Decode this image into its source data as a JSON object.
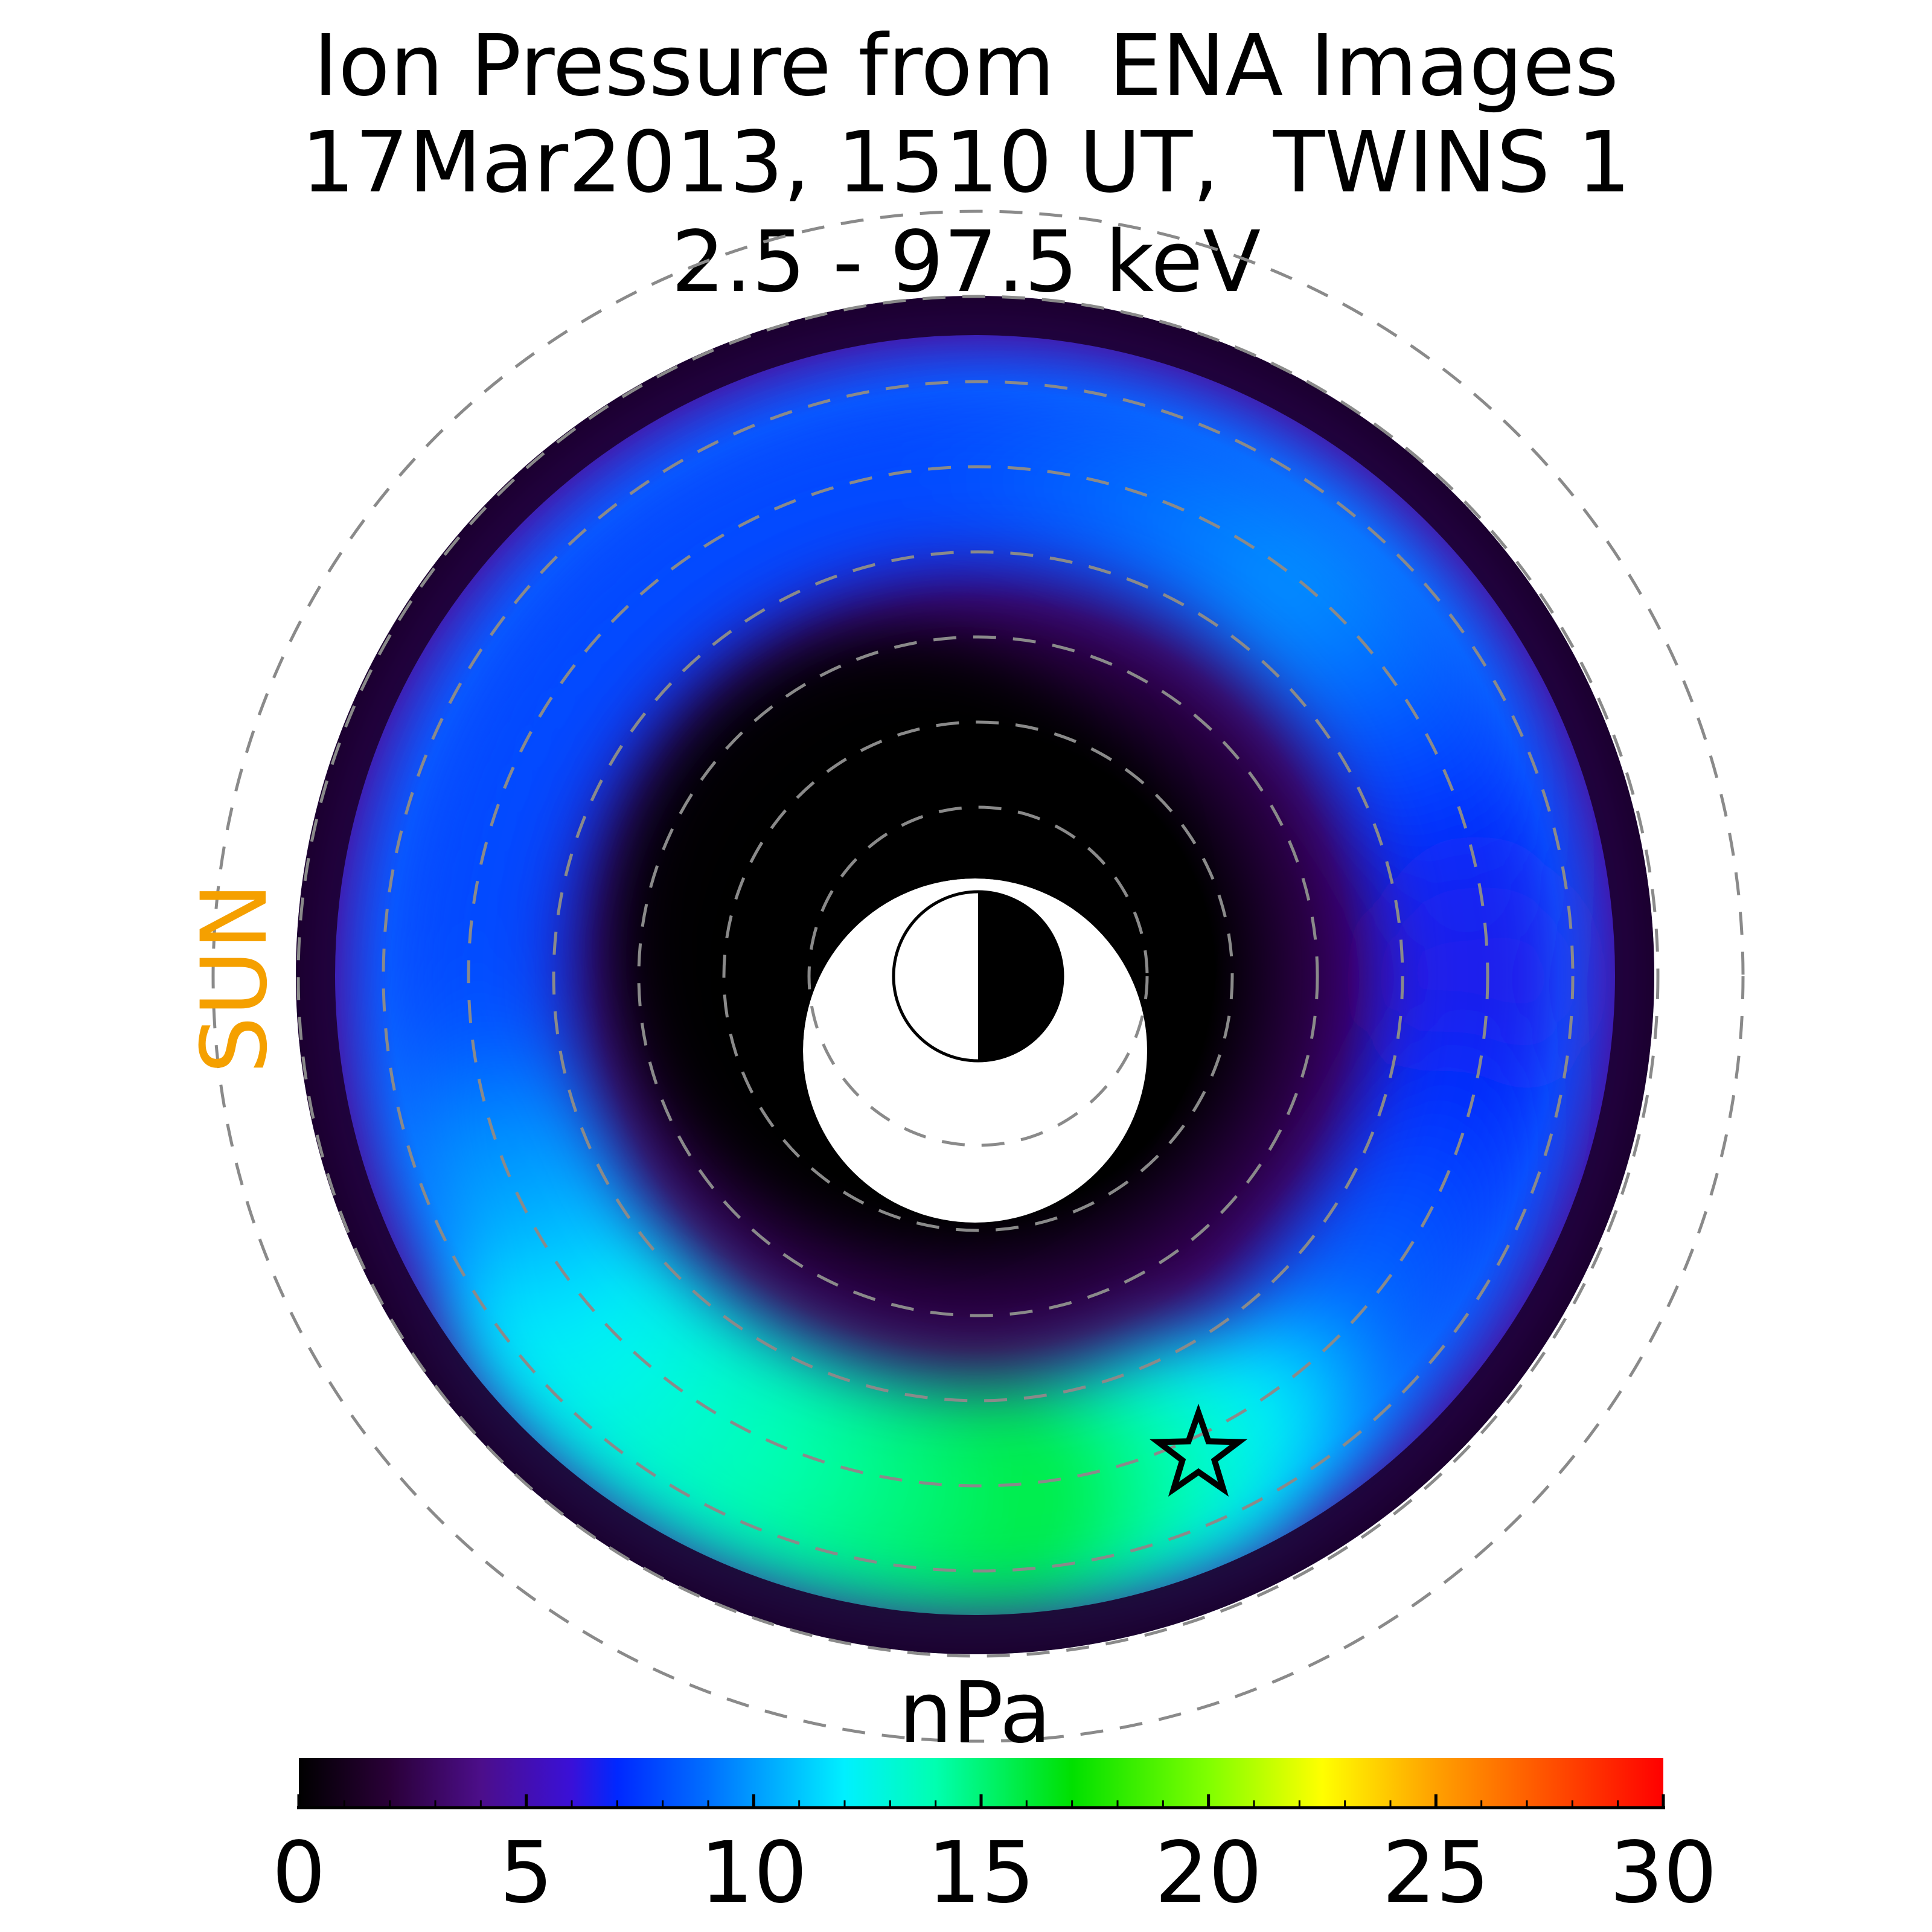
{
  "chart_data": {
    "type": "heatmap",
    "title_lines": [
      "Ion Pressure from  ENA Images",
      "17Mar2013, 1510 UT,  TWINS 1",
      "2.5 - 97.5 keV"
    ],
    "side_label": "SUN",
    "side_label_color": "#f5a000",
    "colorbar": {
      "label": "nPa",
      "range": [
        0,
        30
      ],
      "ticks": [
        0,
        5,
        10,
        15,
        20,
        25,
        30
      ],
      "tick_labels": [
        "0",
        "5",
        "10",
        "15",
        "20",
        "25",
        "30"
      ],
      "minor_tick_step": 1,
      "colormap": [
        {
          "value": 0,
          "color": "#000000"
        },
        {
          "value": 2,
          "color": "#2a0038"
        },
        {
          "value": 4,
          "color": "#4c0e8a"
        },
        {
          "value": 6,
          "color": "#3a10d8"
        },
        {
          "value": 7,
          "color": "#0028ff"
        },
        {
          "value": 9,
          "color": "#0070ff"
        },
        {
          "value": 12,
          "color": "#00f0ff"
        },
        {
          "value": 14,
          "color": "#00ffb0"
        },
        {
          "value": 17,
          "color": "#00e000"
        },
        {
          "value": 20,
          "color": "#80ff00"
        },
        {
          "value": 22.5,
          "color": "#ffff00"
        },
        {
          "value": 25,
          "color": "#ffa000"
        },
        {
          "value": 27.5,
          "color": "#ff5000"
        },
        {
          "value": 30,
          "color": "#ff0000"
        }
      ]
    },
    "map": {
      "description_values": "equatorial ion pressure ring, peak near local midnight-dawn",
      "pressure_ring": [
        {
          "angle_deg": 0,
          "pressure": 6
        },
        {
          "angle_deg": 45,
          "pressure": 9
        },
        {
          "angle_deg": 90,
          "pressure": 16
        },
        {
          "angle_deg": 135,
          "pressure": 13
        },
        {
          "angle_deg": 180,
          "pressure": 8
        },
        {
          "angle_deg": 225,
          "pressure": 8
        },
        {
          "angle_deg": 270,
          "pressure": 8
        },
        {
          "angle_deg": 315,
          "pressure": 10
        }
      ],
      "peak_marker": "star-icon",
      "dashed_circles": 8,
      "earth_symbol": "half-lit-earth"
    }
  }
}
